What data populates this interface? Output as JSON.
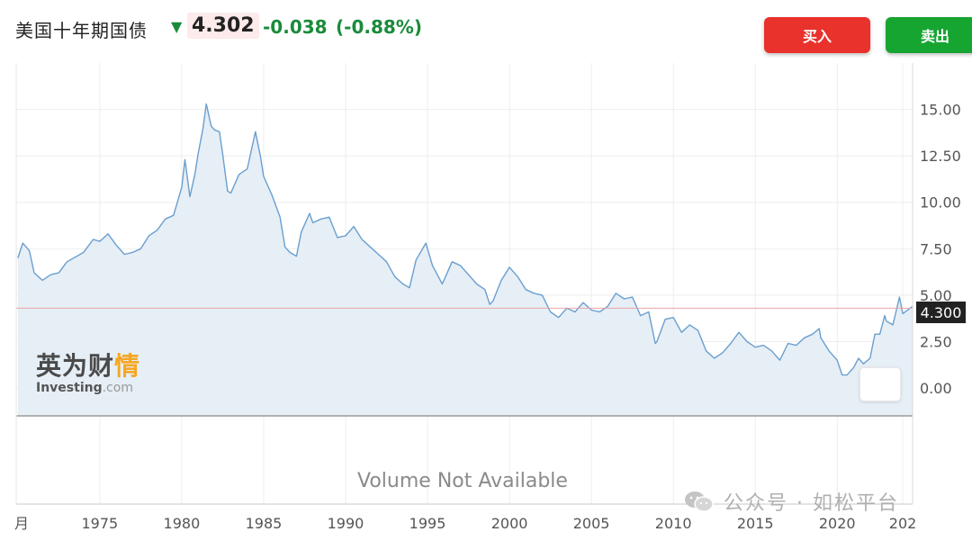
{
  "header": {
    "instrument": "美国十年期国债",
    "direction_icon": "arrow-down",
    "last": "4.302",
    "change": "-0.038",
    "change_pct": "(-0.88%)",
    "buy_label": "买入",
    "sell_label": "卖出"
  },
  "chart_data": {
    "type": "area",
    "title": "",
    "xlabel": "",
    "ylabel": "",
    "xlim": [
      1969.9,
      2024.6
    ],
    "ylim": [
      -1.5,
      17.5
    ],
    "x_ticks": [
      "1975",
      "1980",
      "1985",
      "1990",
      "1995",
      "2000",
      "2005",
      "2010",
      "2015",
      "2020",
      "2024"
    ],
    "x_tick_labels": [
      "1975",
      "1980",
      "1985",
      "1990",
      "1995",
      "2000",
      "2005",
      "2010",
      "2015",
      "2020",
      "202"
    ],
    "y_ticks": [
      0,
      2.5,
      5,
      7.5,
      10,
      12.5,
      15
    ],
    "y_tick_labels": [
      "0.00",
      "2.50",
      "5.00",
      "7.50",
      "10.00",
      "12.50",
      "15.00"
    ],
    "left_edge_label": "月",
    "current_price_label": "4.300",
    "reference_line": 4.3,
    "grid": true,
    "series": [
      {
        "x": [
          1970,
          1970.3,
          1970.7,
          1971,
          1971.5,
          1972,
          1972.5,
          1973,
          1973.6,
          1974,
          1974.6,
          1975,
          1975.5,
          1976,
          1976.5,
          1977,
          1977.5,
          1978,
          1978.5,
          1979,
          1979.5,
          1980,
          1980.2,
          1980.5,
          1980.8,
          1981,
          1981.3,
          1981.5,
          1981.8,
          1982,
          1982.3,
          1982.5,
          1982.8,
          1983,
          1983.5,
          1984,
          1984.5,
          1984.8,
          1985,
          1985.5,
          1986,
          1986.3,
          1986.6,
          1987,
          1987.3,
          1987.8,
          1988,
          1988.5,
          1989,
          1989.5,
          1990,
          1990.5,
          1991,
          1991.5,
          1992,
          1992.5,
          1993,
          1993.5,
          1993.9,
          1994.3,
          1994.9,
          1995.3,
          1995.9,
          1996.5,
          1997,
          1997.5,
          1998,
          1998.5,
          1998.8,
          1999,
          1999.5,
          2000,
          2000.5,
          2001,
          2001.5,
          2002,
          2002.5,
          2003,
          2003.5,
          2004,
          2004.5,
          2005,
          2005.5,
          2006,
          2006.5,
          2007,
          2007.5,
          2008,
          2008.5,
          2008.9,
          2009,
          2009.5,
          2010,
          2010.5,
          2011,
          2011.5,
          2012,
          2012.5,
          2013,
          2013.5,
          2014,
          2014.5,
          2015,
          2015.5,
          2016,
          2016.5,
          2017,
          2017.5,
          2018,
          2018.5,
          2018.9,
          2019,
          2019.5,
          2020,
          2020.3,
          2020.6,
          2021,
          2021.3,
          2021.6,
          2022,
          2022.3,
          2022.6,
          2022.9,
          2023,
          2023.4,
          2023.8,
          2024,
          2024.3,
          2024.6
        ],
        "values": [
          7.0,
          7.8,
          7.4,
          6.2,
          5.8,
          6.1,
          6.2,
          6.8,
          7.1,
          7.3,
          8.0,
          7.9,
          8.3,
          7.7,
          7.2,
          7.3,
          7.5,
          8.2,
          8.5,
          9.1,
          9.3,
          10.8,
          12.3,
          10.3,
          11.5,
          12.6,
          14.0,
          15.3,
          14.1,
          13.9,
          13.8,
          12.6,
          10.6,
          10.5,
          11.5,
          11.8,
          13.8,
          12.5,
          11.4,
          10.4,
          9.2,
          7.6,
          7.3,
          7.1,
          8.4,
          9.4,
          8.9,
          9.1,
          9.2,
          8.1,
          8.2,
          8.7,
          8.0,
          7.6,
          7.2,
          6.8,
          6.0,
          5.6,
          5.4,
          6.9,
          7.8,
          6.6,
          5.6,
          6.8,
          6.6,
          6.1,
          5.6,
          5.3,
          4.5,
          4.7,
          5.8,
          6.5,
          6.0,
          5.3,
          5.1,
          5.0,
          4.1,
          3.8,
          4.3,
          4.1,
          4.6,
          4.2,
          4.1,
          4.4,
          5.1,
          4.8,
          4.9,
          3.9,
          4.1,
          2.4,
          2.5,
          3.7,
          3.8,
          3.0,
          3.4,
          3.1,
          2.0,
          1.6,
          1.9,
          2.4,
          3.0,
          2.5,
          2.2,
          2.3,
          2.0,
          1.5,
          2.4,
          2.3,
          2.7,
          2.9,
          3.2,
          2.7,
          2.0,
          1.5,
          0.7,
          0.7,
          1.1,
          1.6,
          1.3,
          1.6,
          2.9,
          2.9,
          3.9,
          3.6,
          3.4,
          4.9,
          4.0,
          4.2,
          4.4
        ]
      }
    ],
    "colors": {
      "line": "#6a9fcf",
      "area": "#e6eef6",
      "reference": "#e9a6a6"
    }
  },
  "watermark": {
    "cn": "英为财",
    "cn_accent": "情",
    "brand": "Investing",
    "domain": ".com"
  },
  "volume_note": "Volume Not Available",
  "wechat_label": "公众号 · 如松平台"
}
